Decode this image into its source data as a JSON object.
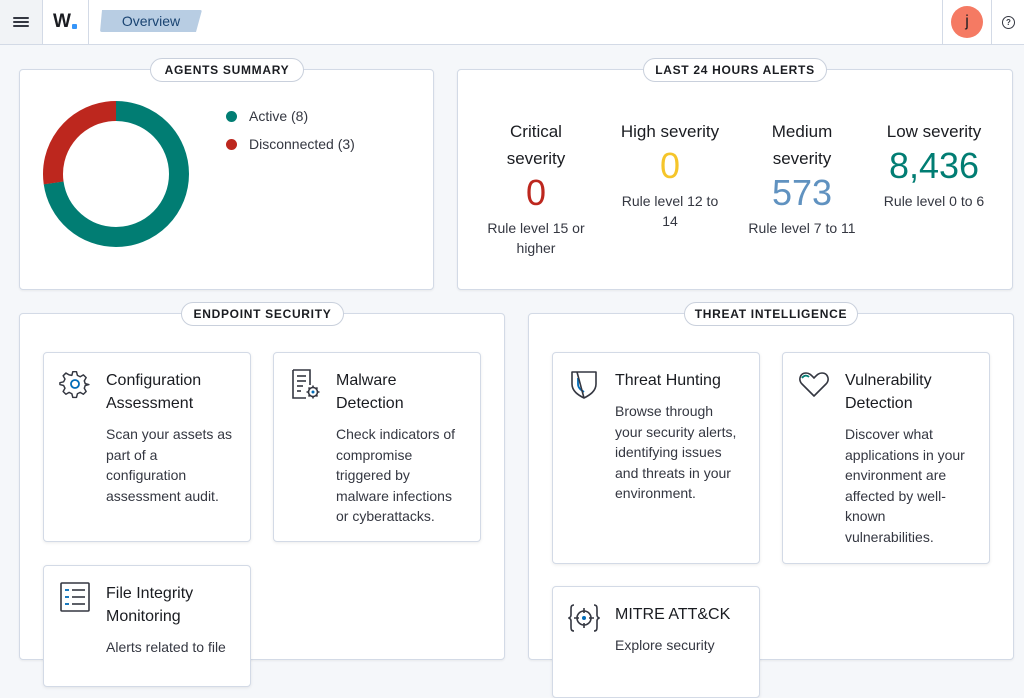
{
  "header": {
    "logo_text": "W",
    "breadcrumb": "Overview",
    "avatar_initial": "j",
    "help_symbol": "?"
  },
  "agents_summary": {
    "title": "AGENTS SUMMARY",
    "legend": [
      {
        "label": "Active (8)",
        "color": "#017d73",
        "count": 8
      },
      {
        "label": "Disconnected (3)",
        "color": "#bd271e",
        "count": 3
      }
    ]
  },
  "alerts": {
    "title": "LAST 24 HOURS ALERTS",
    "items": [
      {
        "label_lines": [
          "Critical",
          "severity"
        ],
        "value": "0",
        "color": "#bd271e",
        "sub_lines": [
          "Rule level 15 or",
          "higher"
        ]
      },
      {
        "label_lines": [
          "High severity"
        ],
        "value": "0",
        "color": "#f5c52a",
        "sub_lines": [
          "Rule level 12 to",
          "14"
        ]
      },
      {
        "label_lines": [
          "Medium",
          "severity"
        ],
        "value": "573",
        "color": "#6092c0",
        "sub_lines": [
          "Rule level 7 to 11"
        ]
      },
      {
        "label_lines": [
          "Low severity"
        ],
        "value": "8,436",
        "color": "#017d73",
        "sub_lines": [
          "Rule level 0 to 6"
        ]
      }
    ]
  },
  "endpoint_security": {
    "title": "ENDPOINT SECURITY",
    "cards": [
      {
        "icon": "gear-icon",
        "title_lines": [
          "Configuration",
          "Assessment"
        ],
        "desc_lines": [
          "Scan your assets as",
          "part of a",
          "configuration",
          "assessment audit."
        ]
      },
      {
        "icon": "malware-document-icon",
        "title_lines": [
          "Malware",
          "Detection"
        ],
        "desc_lines": [
          "Check indicators of",
          "compromise",
          "triggered by",
          "malware infections",
          "or cyberattacks."
        ]
      },
      {
        "icon": "file-list-icon",
        "title_lines": [
          "File Integrity",
          "Monitoring"
        ],
        "desc_lines": [
          "Alerts related to file"
        ]
      }
    ]
  },
  "threat_intelligence": {
    "title": "THREAT INTELLIGENCE",
    "cards": [
      {
        "icon": "shield-icon",
        "title_lines": [
          "Threat Hunting"
        ],
        "desc_lines": [
          "Browse through",
          "your security alerts,",
          "identifying issues",
          "and threats in your",
          "environment."
        ]
      },
      {
        "icon": "heart-shield-icon",
        "title_lines": [
          "Vulnerability",
          "Detection"
        ],
        "desc_lines": [
          "Discover what",
          "applications in your",
          "environment are",
          "affected by well-",
          "known",
          "vulnerabilities."
        ]
      },
      {
        "icon": "target-icon",
        "title_lines": [
          "MITRE ATT&CK"
        ],
        "desc_lines": [
          "Explore security"
        ]
      }
    ]
  }
}
